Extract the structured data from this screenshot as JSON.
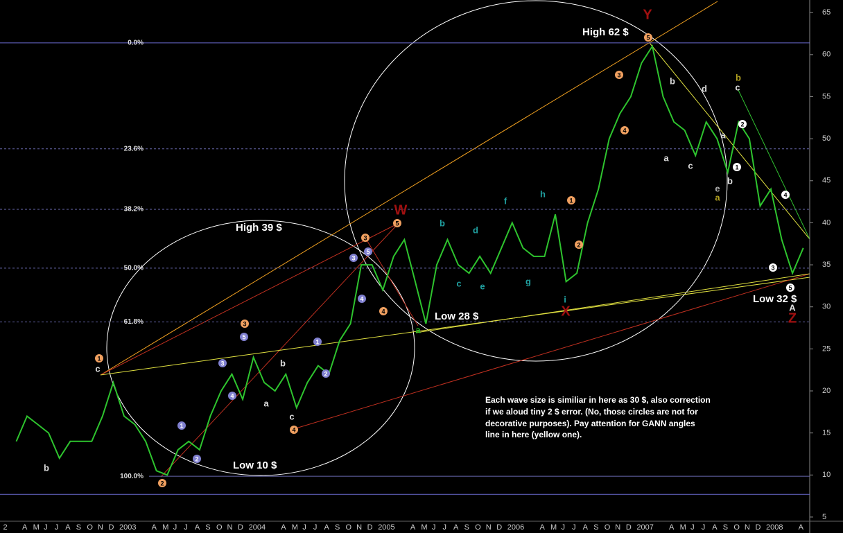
{
  "chart_data": {
    "type": "line",
    "categories": [
      "2",
      "A",
      "M",
      "J",
      "J",
      "A",
      "S",
      "O",
      "N",
      "D",
      "2003",
      null,
      null,
      "A",
      "M",
      "J",
      "J",
      "A",
      "S",
      "O",
      "N",
      "D",
      "2004",
      null,
      null,
      "A",
      "M",
      "J",
      "J",
      "A",
      "S",
      "O",
      "N",
      "D",
      "2005",
      null,
      null,
      "A",
      "M",
      "J",
      "J",
      "A",
      "S",
      "O",
      "N",
      "D",
      "2006",
      null,
      null,
      "A",
      "M",
      "J",
      "J",
      "A",
      "S",
      "O",
      "N",
      "D",
      "2007",
      null,
      null,
      "A",
      "M",
      "J",
      "J",
      "A",
      "S",
      "O",
      "N",
      "D",
      "2008",
      null,
      null,
      "A"
    ],
    "series": [
      {
        "color": "#2ec42e",
        "values": [
          14,
          17,
          16,
          15,
          12,
          14,
          14,
          14,
          17,
          21,
          17,
          16,
          14,
          10.5,
          10,
          13,
          14,
          13,
          17,
          20,
          22,
          19,
          24,
          21,
          20,
          22,
          18,
          21,
          23,
          22,
          26,
          28,
          35,
          35,
          32,
          36,
          38,
          33,
          28,
          35,
          38,
          35,
          34,
          36,
          34,
          37,
          40,
          37,
          36,
          36,
          41,
          33,
          34,
          40,
          44,
          50,
          53,
          55,
          59,
          61,
          55,
          52,
          51,
          48,
          52,
          50,
          46,
          52,
          50,
          42,
          44,
          38,
          34,
          37
        ]
      }
    ],
    "ylim": [
      3.1,
      66.5
    ],
    "yticks": [
      5,
      10,
      15,
      20,
      25,
      30,
      35,
      40,
      45,
      50,
      55,
      60,
      65
    ],
    "fib_levels": [
      {
        "value": 61.4,
        "label": "0.0%"
      },
      {
        "value": 48.8,
        "label": "23.6%"
      },
      {
        "value": 41.6,
        "label": "38.2%"
      },
      {
        "value": 34.6,
        "label": "50.0%"
      },
      {
        "value": 28.2,
        "label": "61.8%"
      },
      {
        "value": 9.85,
        "label": "100.0%"
      }
    ],
    "support": 7.7,
    "annotations": {
      "callouts": [
        "High 62 $",
        "High 39 $",
        "Low 28 $",
        "Low 10 $",
        "Low 32 $"
      ],
      "wave_names": [
        "W",
        "X",
        "Y",
        "Z"
      ],
      "note": [
        "Each wave size is similiar in here as 30 $, also correction",
        "if we aloud tiny 2 $ error. (No, those circles are not for",
        "decorative purposes). Pay attention for GANN angles",
        "line in here (yellow one)."
      ],
      "letters": [
        "b",
        "c",
        "a",
        "b",
        "c",
        "a",
        "b",
        "c",
        "d",
        "a",
        "b",
        "e",
        "A",
        "c",
        "b",
        "a",
        "b",
        "c",
        "d",
        "e",
        "f",
        "g",
        "h",
        "i",
        "a"
      ],
      "circled": [
        "1",
        "2",
        "3",
        "4",
        "3",
        "4",
        "5",
        "3",
        "4",
        "5",
        "1",
        "2",
        "1",
        "2",
        "3",
        "4",
        "5",
        "1",
        "2",
        "3",
        "4",
        "5",
        "1",
        "2",
        "3",
        "4",
        "5"
      ]
    }
  }
}
